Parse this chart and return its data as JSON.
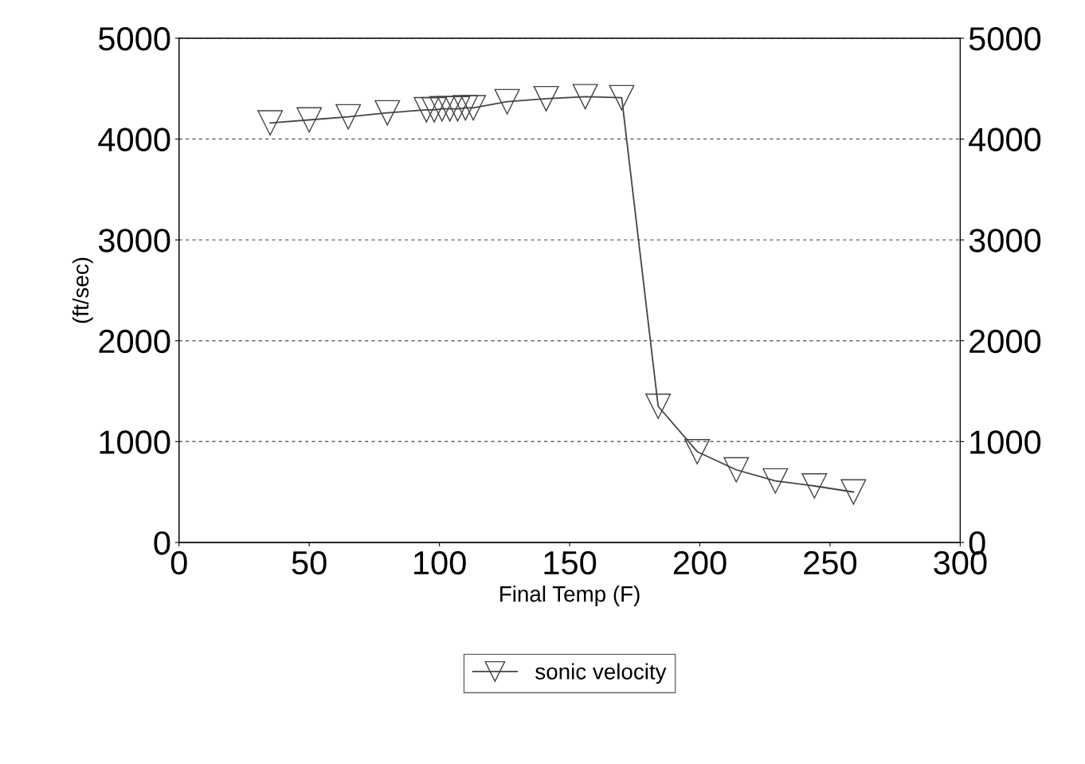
{
  "chart_data": {
    "type": "line",
    "xlabel": "Final Temp (F)",
    "ylabel": "(ft/sec)",
    "x": [
      35,
      50,
      65,
      80,
      95,
      98,
      101,
      104,
      107,
      110,
      113,
      126,
      141,
      156,
      170,
      184,
      199,
      214,
      229,
      244,
      259
    ],
    "series": [
      {
        "name": "sonic velocity",
        "color": "#444444",
        "values": [
          4160,
          4190,
          4220,
          4260,
          4290,
          4290,
          4300,
          4300,
          4300,
          4310,
          4310,
          4370,
          4400,
          4420,
          4410,
          1350,
          900,
          720,
          610,
          560,
          500
        ]
      }
    ],
    "xlim": [
      0,
      300
    ],
    "xticks": [
      0,
      50,
      100,
      150,
      200,
      250,
      300
    ],
    "ylim": [
      0,
      5000
    ],
    "yticks": [
      0,
      1000,
      2000,
      3000,
      4000,
      5000
    ],
    "y2lim": [
      0,
      5000
    ],
    "y2ticks": [
      0,
      1000,
      2000,
      3000,
      4000,
      5000
    ],
    "grid": "y",
    "legend": "bottom",
    "marker": "triangle",
    "line_style": "solid"
  }
}
